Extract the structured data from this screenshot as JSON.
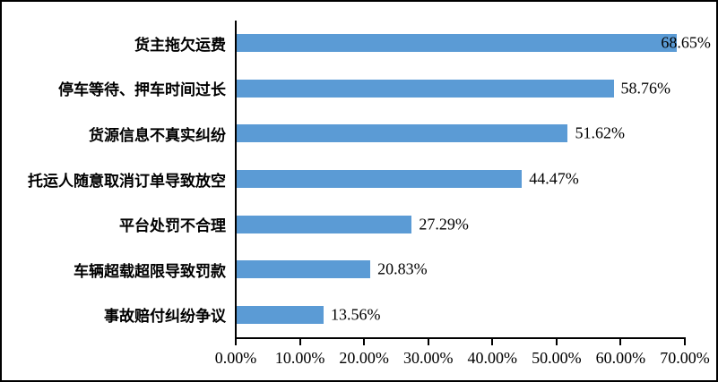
{
  "chart_data": {
    "type": "bar",
    "orientation": "horizontal",
    "title": "",
    "categories": [
      "货主拖欠运费",
      "停车等待、押车时间过长",
      "货源信息不真实纠纷",
      "托运人随意取消订单导致放空",
      "平台处罚不合理",
      "车辆超载超限导致罚款",
      "事故赔付纠纷争议"
    ],
    "values": [
      68.65,
      58.76,
      51.62,
      44.47,
      27.29,
      20.83,
      13.56
    ],
    "data_labels": [
      "68.65%",
      "58.76%",
      "51.62%",
      "44.47%",
      "27.29%",
      "20.83%",
      "13.56%"
    ],
    "x_tick_labels": [
      "0.00%",
      "10.00%",
      "20.00%",
      "30.00%",
      "40.00%",
      "50.00%",
      "60.00%",
      "70.00%"
    ],
    "xlim": [
      0,
      70
    ],
    "x_tick_step": 10,
    "bar_color": "#5B9BD5",
    "axis_color": "#000000",
    "text_color": "#000000",
    "background": "#FFFFFF",
    "grid": false,
    "legend": false
  }
}
